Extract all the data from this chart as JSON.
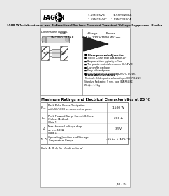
{
  "bg_color": "#e8e8e8",
  "page_bg": "#ffffff",
  "title_line1": "1.5SMC5VB          1.5SMC200A",
  "title_line2": "1.5SMC5VNC     1.5SMC220CA",
  "subtitle": "1500 W Unidirectional and Bidirectional Surface Mounted Transient Voltage Suppressor Diodes",
  "company": "FAGOR",
  "case_label": "CASE\nSMC/DO-214AB",
  "voltage_label": "Voltage\n6.4 to 220 V",
  "power_label": "Power\n1500 W/1ms",
  "dim_label": "Dimensions in mm.",
  "features_title": "Glass passivated junction",
  "features": [
    "Typical I₂₂ less than 1μA above 10V",
    "Response time typically < 1 ns",
    "The plastic material conforms UL-94 V-0",
    "Low profile package",
    "Easy pick and place",
    "High temperature solder dip 260°C, 20 sec."
  ],
  "mech_title": "INFORMATION/DATOS",
  "mech_text": "Terminals: Solder plated solderable per IEC1738-2-20\nStandard Packaging: 5 mm. tape (EIA-RS-481)\nWeight: 1.11 g",
  "table_title": "Maximum Ratings and Electrical Characteristics at 25 °C",
  "rows": [
    {
      "symbol": "P₂₂ₓ",
      "desc1": "Peak Pulse Power Dissipation",
      "desc2": "with 10/1000 μs exponential pulse",
      "note": "",
      "value": "1500 W"
    },
    {
      "symbol": "I₂₂ₓ",
      "desc1": "Peak Forward Surge Current 8.3 ms.",
      "desc2": "(Solder Method)",
      "note": "(Note 1)",
      "value": "200 A"
    },
    {
      "symbol": "Vₑ",
      "desc1": "Max. forward voltage drop",
      "desc2": "at Iₑ = 100A",
      "note": "(Note 1)",
      "value": "3.5V"
    },
    {
      "symbol": "Tⱼ, Tⱼⱼ",
      "desc1": "Operating Junction and Storage",
      "desc2": "Temperature Range",
      "note": "",
      "value": "-65 to + 175 °C"
    }
  ],
  "footnote": "Note 1: Only for Unidirectional",
  "page_num": "Jan - 93"
}
